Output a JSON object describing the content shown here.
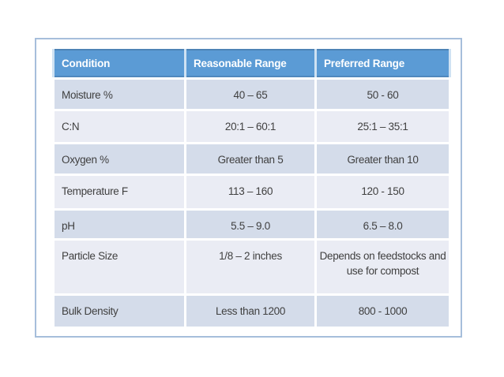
{
  "table": {
    "columns": [
      "Condition",
      "Reasonable Range",
      "Preferred Range"
    ],
    "rows": [
      [
        "Moisture %",
        "40 – 65",
        "50 - 60"
      ],
      [
        "C:N",
        "20:1 – 60:1",
        "25:1 – 35:1"
      ],
      [
        "Oxygen %",
        "Greater than 5",
        "Greater than 10"
      ],
      [
        "Temperature F",
        "113 – 160",
        "120 - 150"
      ],
      [
        "pH",
        "5.5 – 9.0",
        "6.5 – 8.0"
      ],
      [
        "Particle Size",
        "1/8 – 2 inches",
        "Depends on feedstocks and use for compost"
      ],
      [
        "Bulk Density",
        "Less than 1200",
        "800 - 1000"
      ]
    ],
    "colors": {
      "header_bg": "#5b9bd5",
      "header_text": "#ffffff",
      "row_band_dark": "#d4dcea",
      "row_band_light": "#eaecf4",
      "body_text": "#404040",
      "frame_border": "#a6bedb"
    }
  }
}
